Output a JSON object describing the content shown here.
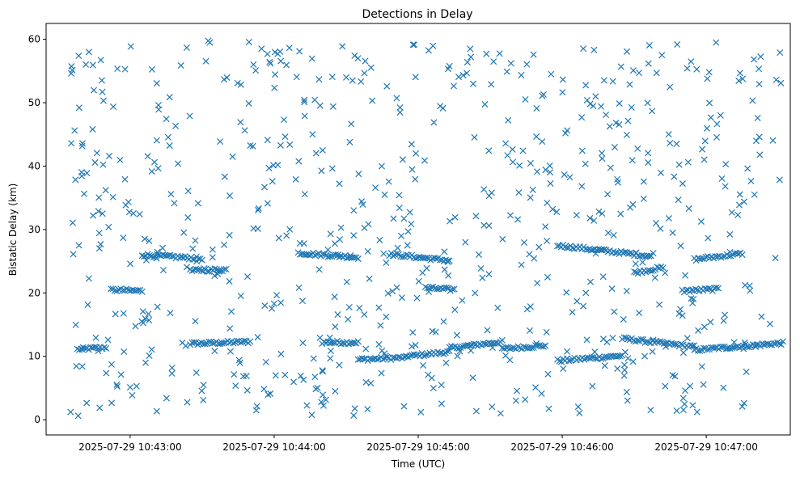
{
  "chart_data": {
    "type": "scatter",
    "title": "Detections in Delay",
    "xlabel": "Time (UTC)",
    "ylabel": "Bistatic Delay (km)",
    "marker": "x",
    "color": "#1f77b4",
    "grid": false,
    "legend": "none",
    "x_unit": "time",
    "xlim": [
      "2025-07-29 10:42:25",
      "2025-07-29 10:47:35"
    ],
    "ylim": [
      -2.4,
      62.5
    ],
    "x_ticks": [
      "2025-07-29 10:43:00",
      "2025-07-29 10:44:00",
      "2025-07-29 10:45:00",
      "2025-07-29 10:46:00",
      "2025-07-29 10:47:00"
    ],
    "y_ticks": [
      0,
      10,
      20,
      30,
      40,
      50,
      60
    ],
    "track_segments": [
      {
        "start": "2025-07-29 10:42:38",
        "end": "2025-07-29 10:42:50",
        "delay_start": 11.1,
        "delay_end": 11.4
      },
      {
        "start": "2025-07-29 10:43:25",
        "end": "2025-07-29 10:43:50",
        "delay_start": 12.0,
        "delay_end": 12.3
      },
      {
        "start": "2025-07-29 10:44:20",
        "end": "2025-07-29 10:44:35",
        "delay_start": 12.2,
        "delay_end": 12.2
      },
      {
        "start": "2025-07-29 10:44:35",
        "end": "2025-07-29 10:44:55",
        "delay_start": 9.5,
        "delay_end": 9.8
      },
      {
        "start": "2025-07-29 10:44:55",
        "end": "2025-07-29 10:45:13",
        "delay_start": 10.0,
        "delay_end": 10.7
      },
      {
        "start": "2025-07-29 10:45:13",
        "end": "2025-07-29 10:45:35",
        "delay_start": 11.3,
        "delay_end": 12.3
      },
      {
        "start": "2025-07-29 10:45:35",
        "end": "2025-07-29 10:45:53",
        "delay_start": 11.2,
        "delay_end": 11.7
      },
      {
        "start": "2025-07-29 10:45:58",
        "end": "2025-07-29 10:46:25",
        "delay_start": 9.3,
        "delay_end": 10.1
      },
      {
        "start": "2025-07-29 10:46:25",
        "end": "2025-07-29 10:46:55",
        "delay_start": 12.8,
        "delay_end": 11.5
      },
      {
        "start": "2025-07-29 10:46:55",
        "end": "2025-07-29 10:47:32",
        "delay_start": 11.0,
        "delay_end": 12.1
      },
      {
        "start": "2025-07-29 10:42:52",
        "end": "2025-07-29 10:43:05",
        "delay_start": 20.5,
        "delay_end": 20.3
      },
      {
        "start": "2025-07-29 10:43:05",
        "end": "2025-07-29 10:43:30",
        "delay_start": 26.0,
        "delay_end": 25.4
      },
      {
        "start": "2025-07-29 10:43:25",
        "end": "2025-07-29 10:43:40",
        "delay_start": 23.5,
        "delay_end": 23.7
      },
      {
        "start": "2025-07-29 10:44:10",
        "end": "2025-07-29 10:44:35",
        "delay_start": 26.3,
        "delay_end": 25.6
      },
      {
        "start": "2025-07-29 10:44:48",
        "end": "2025-07-29 10:45:13",
        "delay_start": 26.1,
        "delay_end": 25.1
      },
      {
        "start": "2025-07-29 10:45:03",
        "end": "2025-07-29 10:45:15",
        "delay_start": 20.8,
        "delay_end": 20.5
      },
      {
        "start": "2025-07-29 10:45:58",
        "end": "2025-07-29 10:46:37",
        "delay_start": 27.5,
        "delay_end": 25.8
      },
      {
        "start": "2025-07-29 10:46:30",
        "end": "2025-07-29 10:46:42",
        "delay_start": 23.2,
        "delay_end": 24.0
      },
      {
        "start": "2025-07-29 10:46:55",
        "end": "2025-07-29 10:47:15",
        "delay_start": 25.3,
        "delay_end": 26.2
      },
      {
        "start": "2025-07-29 10:46:50",
        "end": "2025-07-29 10:47:05",
        "delay_start": 20.3,
        "delay_end": 20.6
      }
    ],
    "clutter_points": 700,
    "clutter_ylim": [
      0.5,
      59.8
    ]
  }
}
